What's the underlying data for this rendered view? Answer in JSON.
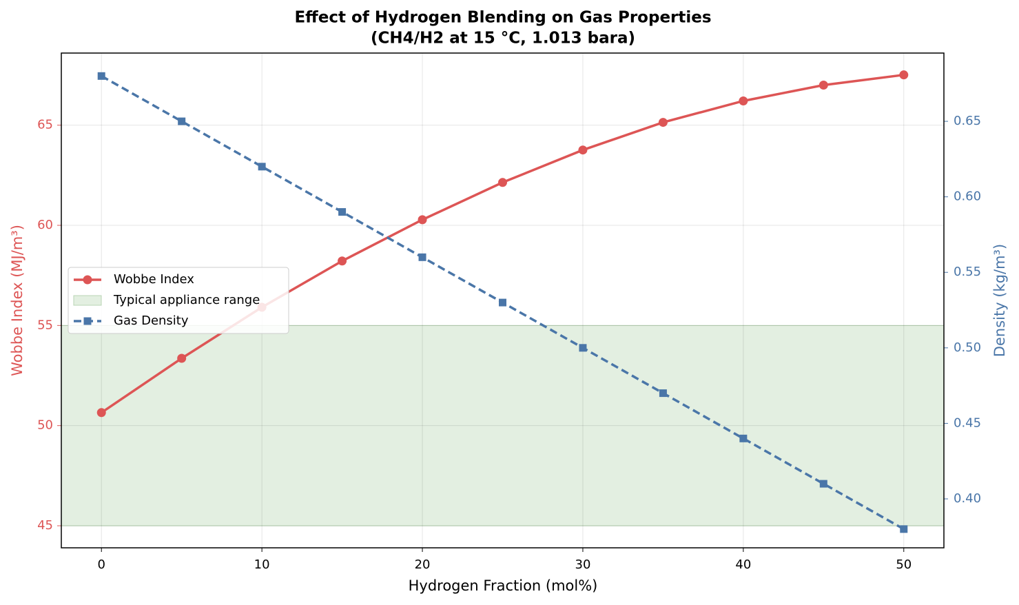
{
  "chart_data": {
    "type": "line",
    "title": "Effect of Hydrogen Blending on Gas Properties",
    "subtitle": "(CH4/H2 at 15 °C, 1.013 bara)",
    "x_label": "Hydrogen Fraction (mol%)",
    "y_label": "Wobbe Index (MJ/m³)",
    "y2_label": "Density (kg/m³)",
    "x": [
      0,
      5,
      10,
      15,
      20,
      25,
      30,
      35,
      40,
      45,
      50
    ],
    "series": [
      {
        "name": "Wobbe Index",
        "color": "#dd5555",
        "marker": "circle",
        "dash": false,
        "values": [
          50.65,
          53.36,
          55.91,
          58.22,
          60.28,
          62.14,
          63.76,
          65.14,
          66.21,
          67.0,
          67.51
        ]
      },
      {
        "name": "Gas Density",
        "color": "#4a76a8",
        "marker": "square",
        "dash": true,
        "axis": "y2",
        "values": [
          0.68,
          0.65,
          0.62,
          0.59,
          0.56,
          0.53,
          0.5,
          0.47,
          0.44,
          0.41,
          0.38
        ]
      }
    ],
    "band": {
      "name": "Typical appliance range",
      "range": [
        45,
        55
      ],
      "color": "#e3efe1"
    },
    "xlim": [
      -2.5,
      52.5
    ],
    "xticks": [
      0,
      10,
      20,
      30,
      40,
      50
    ],
    "ylim": [
      43.9,
      68.6
    ],
    "yticks": [
      45,
      50,
      55,
      60,
      65
    ],
    "y2lim": [
      0.3676,
      0.6952
    ],
    "y2ticks": [
      {
        "value": 0.4,
        "label": "0.40"
      },
      {
        "value": 0.45,
        "label": "0.45"
      },
      {
        "value": 0.5,
        "label": "0.50"
      },
      {
        "value": 0.55,
        "label": "0.55"
      },
      {
        "value": 0.6,
        "label": "0.60"
      },
      {
        "value": 0.65,
        "label": "0.65"
      }
    ],
    "grid": true,
    "legend": "center left"
  }
}
